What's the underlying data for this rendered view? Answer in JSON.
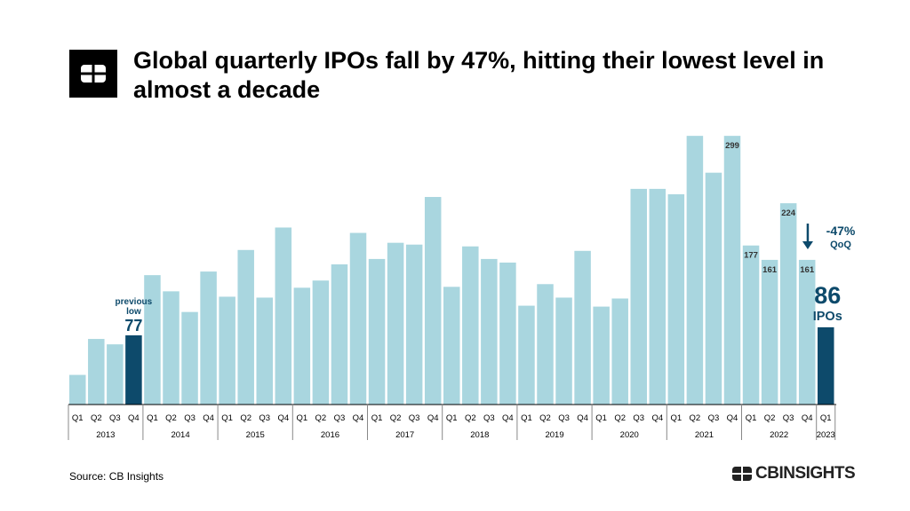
{
  "header": {
    "title": "Global quarterly IPOs fall by 47%, hitting their lowest level in almost a decade"
  },
  "footer": {
    "source": "Source: CB Insights",
    "brand": "CBINSIGHTS"
  },
  "colors": {
    "bar": "#a9d6df",
    "highlight": "#0d4a6b",
    "annotation": "#0d4a6b",
    "axis": "#000000"
  },
  "icons": {
    "logo": "cb-logo-icon",
    "arrow": "arrow-down-icon"
  },
  "chart_data": {
    "type": "bar",
    "title": "Global quarterly IPOs fall by 47%, hitting their lowest level in almost a decade",
    "xlabel": "",
    "ylabel": "",
    "ylim": [
      0,
      310
    ],
    "grid": false,
    "legend": "none",
    "categories": [
      "Q1 2013",
      "Q2 2013",
      "Q3 2013",
      "Q4 2013",
      "Q1 2014",
      "Q2 2014",
      "Q3 2014",
      "Q4 2014",
      "Q1 2015",
      "Q2 2015",
      "Q3 2015",
      "Q4 2015",
      "Q1 2016",
      "Q2 2016",
      "Q3 2016",
      "Q4 2016",
      "Q1 2017",
      "Q2 2017",
      "Q3 2017",
      "Q4 2017",
      "Q1 2018",
      "Q2 2018",
      "Q3 2018",
      "Q4 2018",
      "Q1 2019",
      "Q2 2019",
      "Q3 2019",
      "Q4 2019",
      "Q1 2020",
      "Q2 2020",
      "Q3 2020",
      "Q4 2020",
      "Q1 2021",
      "Q2 2021",
      "Q3 2021",
      "Q4 2021",
      "Q1 2022",
      "Q2 2022",
      "Q3 2022",
      "Q4 2022",
      "Q1 2023"
    ],
    "quarter_labels": [
      "Q1",
      "Q2",
      "Q3",
      "Q4",
      "Q1",
      "Q2",
      "Q3",
      "Q4",
      "Q1",
      "Q2",
      "Q3",
      "Q4",
      "Q1",
      "Q2",
      "Q3",
      "Q4",
      "Q1",
      "Q2",
      "Q3",
      "Q4",
      "Q1",
      "Q2",
      "Q3",
      "Q4",
      "Q1",
      "Q2",
      "Q3",
      "Q4",
      "Q1",
      "Q2",
      "Q3",
      "Q4",
      "Q1",
      "Q2",
      "Q3",
      "Q4",
      "Q1",
      "Q2",
      "Q3",
      "Q4",
      "Q1"
    ],
    "years": [
      {
        "label": "2013",
        "quarters": 4
      },
      {
        "label": "2014",
        "quarters": 4
      },
      {
        "label": "2015",
        "quarters": 4
      },
      {
        "label": "2016",
        "quarters": 4
      },
      {
        "label": "2017",
        "quarters": 4
      },
      {
        "label": "2018",
        "quarters": 4
      },
      {
        "label": "2019",
        "quarters": 4
      },
      {
        "label": "2020",
        "quarters": 4
      },
      {
        "label": "2021",
        "quarters": 4
      },
      {
        "label": "2022",
        "quarters": 4
      },
      {
        "label": "2023",
        "quarters": 1
      }
    ],
    "values": [
      33,
      73,
      67,
      77,
      144,
      126,
      103,
      148,
      120,
      172,
      119,
      197,
      130,
      138,
      156,
      191,
      162,
      180,
      178,
      231,
      131,
      176,
      162,
      158,
      110,
      134,
      119,
      171,
      109,
      118,
      240,
      240,
      234,
      299,
      258,
      299,
      177,
      161,
      224,
      161,
      86
    ],
    "highlight_indices": [
      3,
      40
    ],
    "data_labels": [
      {
        "index": 35,
        "text": "299"
      },
      {
        "index": 36,
        "text": "177"
      },
      {
        "index": 37,
        "text": "161"
      },
      {
        "index": 38,
        "text": "224"
      },
      {
        "index": 39,
        "text": "161"
      }
    ],
    "annotations": {
      "previous_low": {
        "index": 3,
        "label": "previous",
        "label2": "low",
        "value": "77"
      },
      "current": {
        "index": 40,
        "value": "86",
        "unit": "IPOs"
      },
      "change": {
        "value": "-47%",
        "label": "QoQ"
      }
    }
  }
}
